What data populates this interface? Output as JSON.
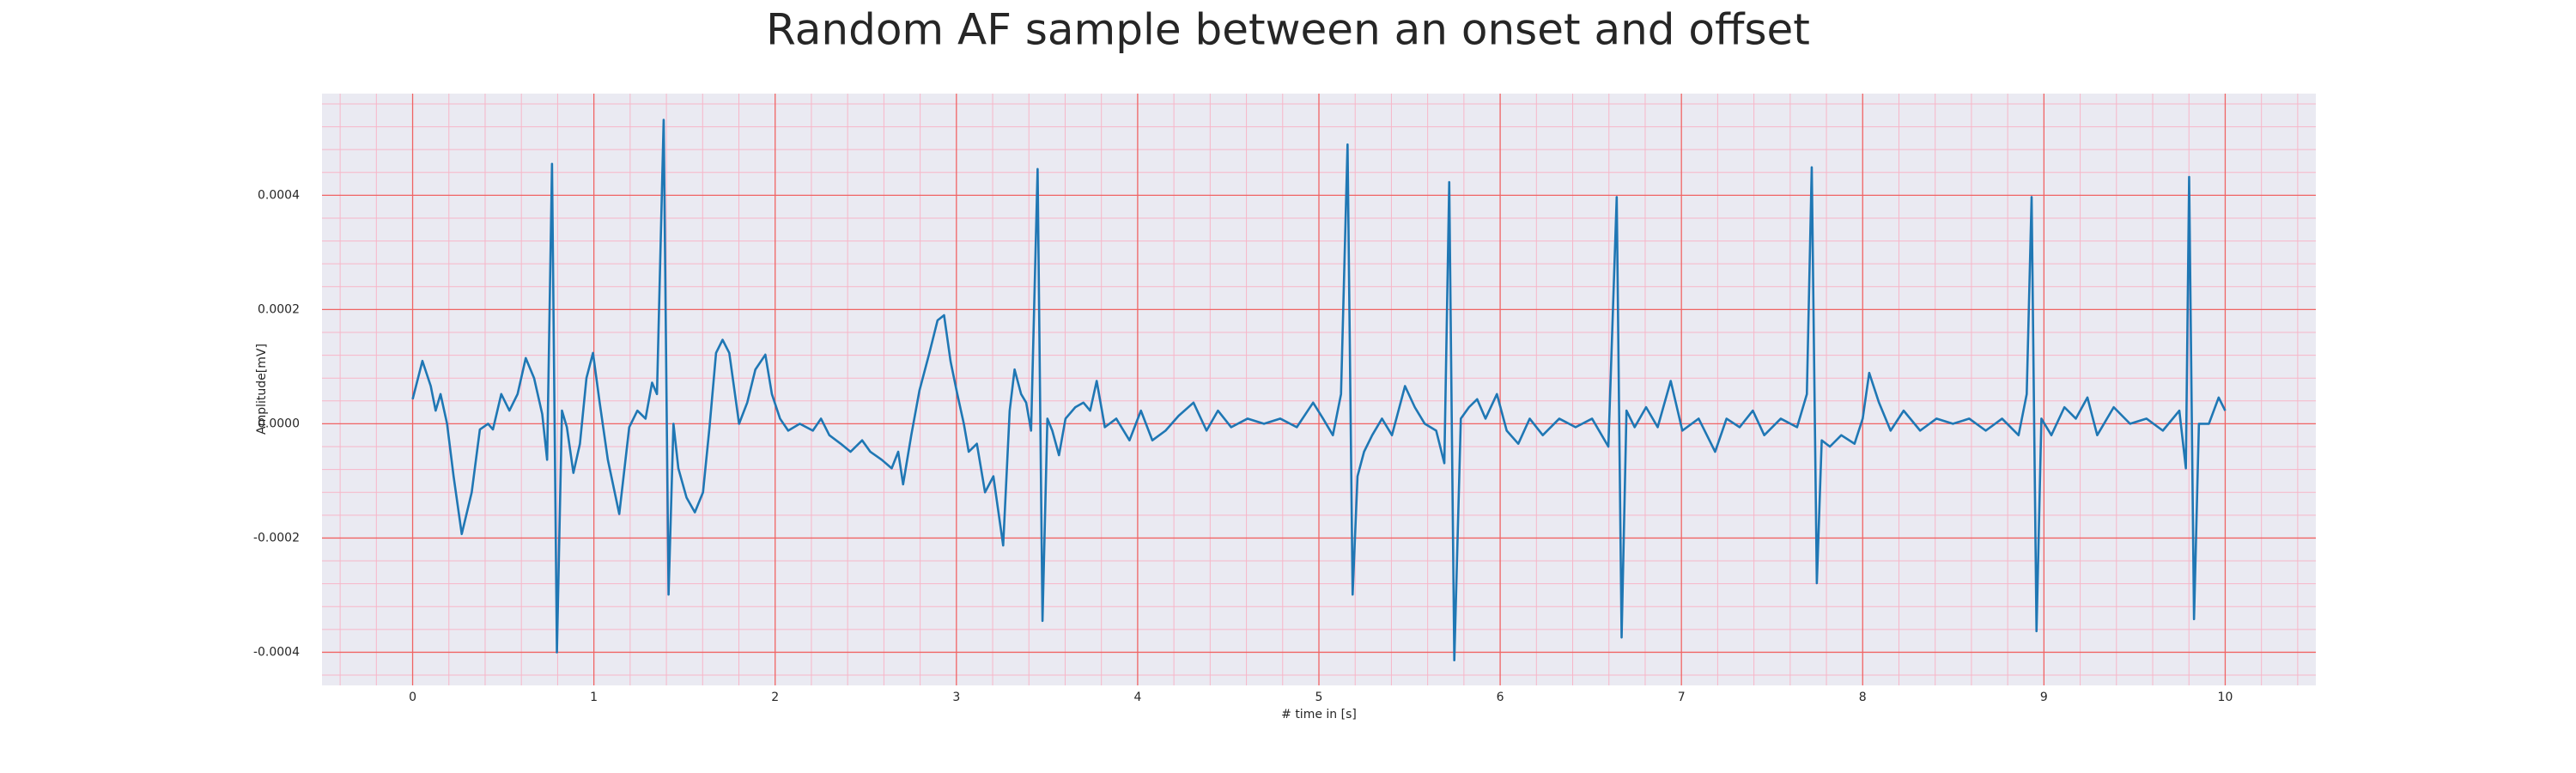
{
  "chart_data": {
    "type": "line",
    "title": "Random AF sample between an onset and offset",
    "xlabel": "# time in [s]",
    "ylabel": "Amplitude[mV]",
    "color": "#1f77b4",
    "grid": true,
    "xlim": [
      -0.5,
      10.5
    ],
    "ylim": [
      -0.000458,
      0.000578
    ],
    "xticks": [
      0,
      1,
      2,
      3,
      4,
      5,
      6,
      7,
      8,
      9,
      10
    ],
    "yticks": [
      -0.0004,
      -0.0002,
      {
        "value": 0,
        "label": "0.0000"
      },
      0.0002,
      0.0004
    ],
    "xminorticks": [
      -0.4,
      -0.2,
      0.2,
      0.4,
      0.6,
      0.8,
      1.2,
      1.4,
      1.6,
      1.8,
      2.2,
      2.4,
      2.6,
      2.8,
      3.2,
      3.4,
      3.6,
      3.8,
      4.2,
      4.4,
      4.6,
      4.8,
      5.2,
      5.4,
      5.6,
      5.8,
      6.2,
      6.4,
      6.6,
      6.8,
      7.2,
      7.4,
      7.6,
      7.8,
      8.2,
      8.4,
      8.6,
      8.8,
      9.2,
      9.4,
      9.6,
      9.8,
      10.2,
      10.4
    ],
    "yminorticks": [
      -0.00044,
      -0.00036,
      -0.00032,
      -0.00028,
      -0.00024,
      -0.00016,
      -0.00012,
      -8e-05,
      -4e-05,
      4e-05,
      8e-05,
      0.00012,
      0.00016,
      0.00024,
      0.00028,
      0.00032,
      0.00036,
      0.00044,
      0.00048,
      0.00052,
      0.00056
    ],
    "x": [
      0,
      0.054,
      0.1,
      0.127,
      0.154,
      0.19,
      0.226,
      0.271,
      0.326,
      0.371,
      0.416,
      0.443,
      0.489,
      0.534,
      0.579,
      0.624,
      0.67,
      0.715,
      0.742,
      0.769,
      0.796,
      0.824,
      0.851,
      0.887,
      0.923,
      0.959,
      0.995,
      1.032,
      1.077,
      1.14,
      1.195,
      1.24,
      1.285,
      1.321,
      1.348,
      1.385,
      1.412,
      1.439,
      1.466,
      1.511,
      1.557,
      1.602,
      1.638,
      1.674,
      1.71,
      1.747,
      1.801,
      1.846,
      1.891,
      1.946,
      1.982,
      2.027,
      2.072,
      2.136,
      2.208,
      2.253,
      2.299,
      2.362,
      2.416,
      2.48,
      2.525,
      2.588,
      2.643,
      2.679,
      2.706,
      2.751,
      2.796,
      2.851,
      2.896,
      2.932,
      2.968,
      3.005,
      3.041,
      3.068,
      3.113,
      3.158,
      3.204,
      3.258,
      3.294,
      3.321,
      3.357,
      3.385,
      3.412,
      3.448,
      3.475,
      3.502,
      3.529,
      3.566,
      3.602,
      3.656,
      3.701,
      3.738,
      3.774,
      3.819,
      3.882,
      3.955,
      4.018,
      4.081,
      4.154,
      4.226,
      4.308,
      4.38,
      4.443,
      4.516,
      4.606,
      4.697,
      4.787,
      4.878,
      4.968,
      5.023,
      5.077,
      5.122,
      5.158,
      5.186,
      5.213,
      5.249,
      5.294,
      5.348,
      5.403,
      5.475,
      5.529,
      5.584,
      5.647,
      5.692,
      5.719,
      5.747,
      5.783,
      5.828,
      5.873,
      5.919,
      5.982,
      6.036,
      6.1,
      6.163,
      6.235,
      6.326,
      6.416,
      6.507,
      6.597,
      6.643,
      6.67,
      6.697,
      6.742,
      6.805,
      6.869,
      6.941,
      7.005,
      7.095,
      7.186,
      7.249,
      7.321,
      7.394,
      7.457,
      7.548,
      7.638,
      7.692,
      7.719,
      7.747,
      7.774,
      7.819,
      7.882,
      7.955,
      8,
      8.036,
      8.09,
      8.154,
      8.226,
      8.317,
      8.407,
      8.498,
      8.588,
      8.679,
      8.769,
      8.86,
      8.905,
      8.932,
      8.959,
      8.986,
      9.041,
      9.113,
      9.176,
      9.24,
      9.294,
      9.385,
      9.475,
      9.566,
      9.656,
      9.747,
      9.783,
      9.801,
      9.828,
      9.855,
      9.91,
      9.964,
      10
    ],
    "values": [
      4.3e-05,
      0.00011,
      6.6e-05,
      2.3e-05,
      5.2e-05,
      0,
      -9.2e-05,
      -0.000193,
      -0.00012,
      -1e-05,
      0,
      -1e-05,
      5.2e-05,
      2.3e-05,
      5.2e-05,
      0.000115,
      8e-05,
      1.7e-05,
      -6.3e-05,
      0.000455,
      -0.0004,
      2.3e-05,
      -6e-06,
      -8.6e-05,
      -3.5e-05,
      8e-05,
      0.000124,
      3.7e-05,
      -6.3e-05,
      -0.000158,
      -6e-06,
      2.3e-05,
      9e-06,
      7.2e-05,
      5.2e-05,
      0.000532,
      -0.000299,
      0,
      -7.8e-05,
      -0.000129,
      -0.000155,
      -0.00012,
      -6e-06,
      0.000124,
      0.000147,
      0.000124,
      0,
      3.7e-05,
      9.5e-05,
      0.000121,
      5.2e-05,
      9e-06,
      -1.2e-05,
      0,
      -1.2e-05,
      9e-06,
      -2e-05,
      -3.5e-05,
      -4.9e-05,
      -2.9e-05,
      -4.9e-05,
      -6.3e-05,
      -7.8e-05,
      -4.9e-05,
      -0.000106,
      -2e-05,
      5.8e-05,
      0.000124,
      0.000181,
      0.00019,
      0.000109,
      5.2e-05,
      0,
      -4.9e-05,
      -3.5e-05,
      -0.00012,
      -9.2e-05,
      -0.000213,
      2.3e-05,
      9.5e-05,
      5.2e-05,
      3.7e-05,
      -1.2e-05,
      0.000446,
      -0.000345,
      9e-06,
      -1.2e-05,
      -5.5e-05,
      9e-06,
      2.9e-05,
      3.7e-05,
      2.3e-05,
      7.5e-05,
      -6e-06,
      9e-06,
      -2.9e-05,
      2.3e-05,
      -2.9e-05,
      -1.2e-05,
      1.4e-05,
      3.7e-05,
      -1.2e-05,
      2.3e-05,
      -6e-06,
      9e-06,
      0,
      9e-06,
      -6e-06,
      3.7e-05,
      9e-06,
      -2e-05,
      5.2e-05,
      0.000489,
      -0.000299,
      -9.2e-05,
      -4.9e-05,
      -2e-05,
      9e-06,
      -2e-05,
      6.6e-05,
      2.9e-05,
      0,
      -1.2e-05,
      -6.9e-05,
      0.000423,
      -0.000414,
      9e-06,
      2.9e-05,
      4.3e-05,
      9e-06,
      5.2e-05,
      -1.2e-05,
      -3.5e-05,
      9e-06,
      -2e-05,
      9e-06,
      -6e-06,
      9e-06,
      -4e-05,
      0.000397,
      -0.000374,
      2.3e-05,
      -6e-06,
      2.9e-05,
      -6e-06,
      7.5e-05,
      -1.2e-05,
      9e-06,
      -4.9e-05,
      9e-06,
      -6e-06,
      2.3e-05,
      -2e-05,
      9e-06,
      -6e-06,
      5.2e-05,
      0.000449,
      -0.000279,
      -2.9e-05,
      -4e-05,
      -2e-05,
      -3.5e-05,
      9e-06,
      8.9e-05,
      3.7e-05,
      -1.2e-05,
      2.3e-05,
      -1.2e-05,
      9e-06,
      0,
      9e-06,
      -1.2e-05,
      9e-06,
      -2e-05,
      5.2e-05,
      0.000397,
      -0.000363,
      9e-06,
      -2e-05,
      2.9e-05,
      9e-06,
      4.6e-05,
      -2e-05,
      2.9e-05,
      0,
      9e-06,
      -1.2e-05,
      2.3e-05,
      -7.8e-05,
      0.000432,
      -0.000342,
      0,
      0,
      4.6e-05,
      2.3e-05
    ]
  }
}
